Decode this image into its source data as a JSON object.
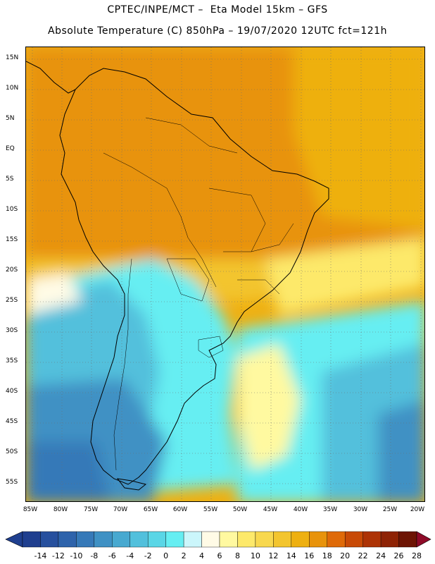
{
  "header": {
    "line1": "CPTEC/INPE/MCT –  Eta Model 15km – GFS",
    "line2": "Absolute Temperature (C) 850hPa – 19/07/2020 12UTC fct=121h"
  },
  "axes": {
    "lat_labels": [
      "15N",
      "10N",
      "5N",
      "EQ",
      "5S",
      "10S",
      "15S",
      "20S",
      "25S",
      "30S",
      "35S",
      "40S",
      "45S",
      "50S",
      "55S"
    ],
    "lon_labels": [
      "85W",
      "80W",
      "75W",
      "70W",
      "65W",
      "60W",
      "55W",
      "50W",
      "45W",
      "40W",
      "35W",
      "30W",
      "25W",
      "20W"
    ]
  },
  "colorbar": {
    "labels": [
      "-14",
      "-12",
      "-10",
      "-8",
      "-6",
      "-4",
      "-2",
      "0",
      "2",
      "4",
      "6",
      "8",
      "10",
      "12",
      "14",
      "16",
      "18",
      "20",
      "22",
      "24",
      "26",
      "28"
    ],
    "colors": [
      "#1f3f8f",
      "#27509e",
      "#2e63ab",
      "#3679b8",
      "#3f91c4",
      "#48a9d0",
      "#52c0dc",
      "#5ad6e6",
      "#66eef2",
      "#cbf6fb",
      "#fffbe6",
      "#fff9a0",
      "#fde96a",
      "#f8d84e",
      "#f3c52e",
      "#eeb011",
      "#e8930b",
      "#df6a08",
      "#c84a06",
      "#ad3305",
      "#8e2305",
      "#6d1404",
      "#8e0a28"
    ]
  },
  "colors": {
    "frame": "#000000",
    "coast": "#000000",
    "grid": "#6d6d6d"
  }
}
